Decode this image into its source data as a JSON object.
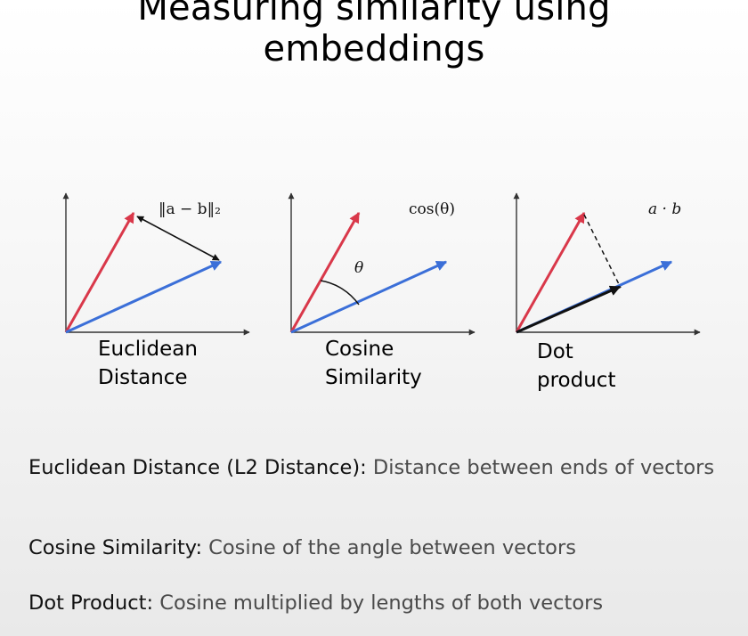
{
  "title": {
    "line1": "Measuring similarity using",
    "line2": "embeddings"
  },
  "colors": {
    "vector_a": "#d9384a",
    "vector_b": "#3b6fd8",
    "axis": "#333333",
    "connector": "#111111"
  },
  "diagrams": [
    {
      "formula": "‖a − b‖₂",
      "caption_line1": "Euclidean",
      "caption_line2": "Distance"
    },
    {
      "formula": "cos(θ)",
      "angle_label": "θ",
      "caption_line1": "Cosine",
      "caption_line2": "Similarity"
    },
    {
      "formula": "a · b",
      "caption_line1": "Dot",
      "caption_line2": "product"
    }
  ],
  "descriptions": [
    {
      "term": "Euclidean Distance (L2 Distance):",
      "text": " Distance between ends of vectors"
    },
    {
      "term": "Cosine Similarity:",
      "text": " Cosine of the angle between vectors"
    },
    {
      "term": "Dot Product:",
      "text": " Cosine multiplied by lengths of both vectors"
    }
  ]
}
